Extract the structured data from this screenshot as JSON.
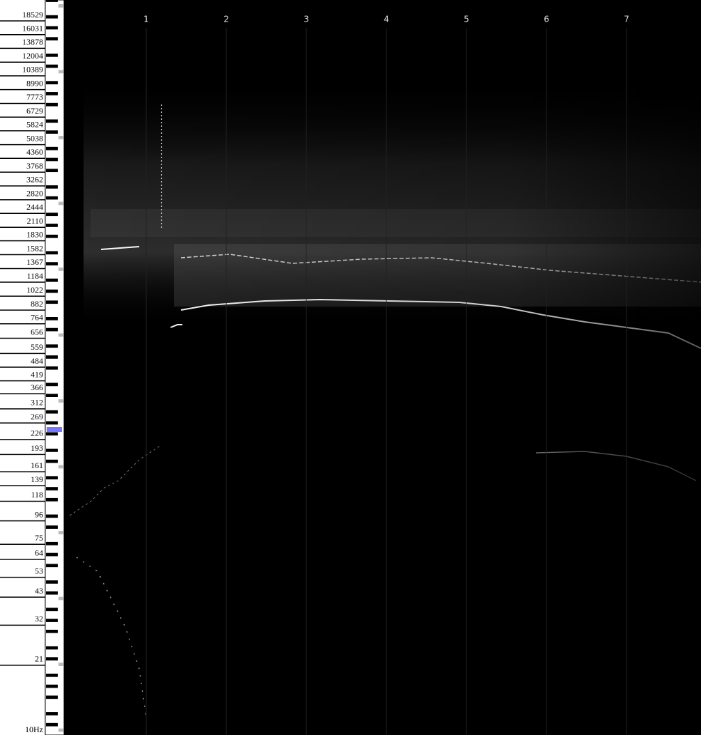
{
  "frequency_axis": {
    "scale": "log",
    "range": [
      10,
      18529
    ],
    "ticks": [
      18529,
      16031,
      13878,
      12004,
      10389,
      8990,
      7773,
      6729,
      5824,
      5038,
      4360,
      3768,
      3262,
      2820,
      2444,
      2110,
      1830,
      1582,
      1367,
      1184,
      1022,
      882,
      764,
      656,
      559,
      484,
      419,
      366,
      312,
      269,
      226,
      193,
      161,
      139,
      118,
      96,
      75,
      64,
      53,
      43,
      32,
      21,
      {
        "value": 10,
        "label": "10Hz"
      }
    ]
  },
  "time_axis": {
    "range": [
      0,
      7.93
    ],
    "ticks": [
      1,
      2,
      3,
      4,
      5,
      6,
      7
    ]
  }
}
